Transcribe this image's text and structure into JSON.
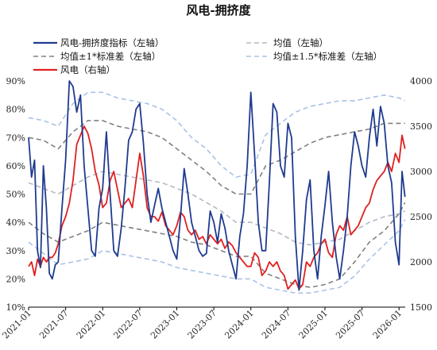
{
  "chart_data": {
    "type": "line",
    "title": "风电-拥挤度",
    "y_left": {
      "ticks": [
        "10%",
        "20%",
        "30%",
        "40%",
        "50%",
        "60%",
        "70%",
        "80%",
        "90%"
      ],
      "range": [
        0.1,
        0.9
      ]
    },
    "y_right": {
      "ticks": [
        "1500",
        "2000",
        "2500",
        "3000",
        "3500",
        "4000"
      ],
      "range": [
        1500,
        4000
      ]
    },
    "x_ticks": [
      "2021-01",
      "2021-07",
      "2022-01",
      "2022-07",
      "2023-01",
      "2023-07",
      "2024-01",
      "2024-07",
      "2025-01",
      "2025-07",
      "2026-01"
    ],
    "x_range": [
      "2021-01",
      "2026-02"
    ],
    "legend": [
      {
        "label": "风电-拥挤度指标（左轴）",
        "color": "#1f3b8f",
        "style": "solid"
      },
      {
        "label": "均值（左轴）",
        "color": "#b4b8c4",
        "style": "dashed"
      },
      {
        "label": "均值±1*标准差（左轴）",
        "color": "#808080",
        "style": "dashed"
      },
      {
        "label": "均值±1.5*标准差（左轴）",
        "color": "#a9c2e6",
        "style": "dashed"
      },
      {
        "label": "风电（右轴）",
        "color": "#e02020",
        "style": "solid"
      }
    ],
    "series": [
      {
        "name": "风电-拥挤度指标（左轴）",
        "axis": "left",
        "color": "#1f3b8f",
        "x": [
          2021.0,
          2021.04,
          2021.08,
          2021.12,
          2021.16,
          2021.2,
          2021.24,
          2021.28,
          2021.32,
          2021.36,
          2021.4,
          2021.45,
          2021.5,
          2021.55,
          2021.6,
          2021.65,
          2021.7,
          2021.75,
          2021.8,
          2021.85,
          2021.9,
          2021.95,
          2022.0,
          2022.05,
          2022.1,
          2022.15,
          2022.2,
          2022.25,
          2022.3,
          2022.35,
          2022.4,
          2022.45,
          2022.5,
          2022.55,
          2022.6,
          2022.65,
          2022.7,
          2022.75,
          2022.8,
          2022.85,
          2022.9,
          2022.95,
          2023.0,
          2023.05,
          2023.1,
          2023.15,
          2023.2,
          2023.25,
          2023.3,
          2023.35,
          2023.4,
          2023.45,
          2023.5,
          2023.55,
          2023.6,
          2023.65,
          2023.7,
          2023.75,
          2023.8,
          2023.85,
          2023.9,
          2023.95,
          2024.0,
          2024.05,
          2024.1,
          2024.15,
          2024.2,
          2024.25,
          2024.3,
          2024.35,
          2024.4,
          2024.45,
          2024.5,
          2024.55,
          2024.6,
          2024.65,
          2024.7,
          2024.75,
          2024.8,
          2024.85,
          2024.9,
          2024.95,
          2025.0,
          2025.05,
          2025.1,
          2025.15,
          2025.2,
          2025.25,
          2025.3,
          2025.35,
          2025.4,
          2025.45,
          2025.5,
          2025.55,
          2025.6,
          2025.65,
          2025.7,
          2025.75,
          2025.8,
          2025.85,
          2025.9,
          2025.95,
          2026.0,
          2026.04,
          2026.08
        ],
        "y": [
          0.7,
          0.56,
          0.62,
          0.3,
          0.24,
          0.6,
          0.45,
          0.22,
          0.2,
          0.25,
          0.26,
          0.45,
          0.62,
          0.9,
          0.88,
          0.79,
          0.85,
          0.6,
          0.45,
          0.3,
          0.28,
          0.45,
          0.52,
          0.72,
          0.5,
          0.3,
          0.28,
          0.38,
          0.52,
          0.69,
          0.72,
          0.8,
          0.82,
          0.68,
          0.5,
          0.4,
          0.46,
          0.52,
          0.45,
          0.4,
          0.35,
          0.3,
          0.27,
          0.42,
          0.59,
          0.5,
          0.4,
          0.35,
          0.3,
          0.28,
          0.29,
          0.44,
          0.4,
          0.33,
          0.43,
          0.38,
          0.3,
          0.25,
          0.2,
          0.35,
          0.43,
          0.6,
          0.86,
          0.64,
          0.4,
          0.3,
          0.3,
          0.54,
          0.82,
          0.79,
          0.6,
          0.56,
          0.75,
          0.7,
          0.35,
          0.16,
          0.3,
          0.48,
          0.55,
          0.3,
          0.2,
          0.35,
          0.46,
          0.58,
          0.4,
          0.28,
          0.2,
          0.3,
          0.42,
          0.6,
          0.72,
          0.67,
          0.6,
          0.56,
          0.7,
          0.8,
          0.67,
          0.81,
          0.75,
          0.6,
          0.54,
          0.33,
          0.25,
          0.58,
          0.49
        ]
      },
      {
        "name": "风电（右轴）",
        "axis": "right",
        "color": "#e02020",
        "x": [
          2021.0,
          2021.04,
          2021.08,
          2021.12,
          2021.16,
          2021.2,
          2021.24,
          2021.28,
          2021.32,
          2021.36,
          2021.4,
          2021.45,
          2021.5,
          2021.55,
          2021.6,
          2021.65,
          2021.7,
          2021.75,
          2021.8,
          2021.85,
          2021.9,
          2021.95,
          2022.0,
          2022.05,
          2022.1,
          2022.15,
          2022.2,
          2022.25,
          2022.3,
          2022.35,
          2022.4,
          2022.45,
          2022.5,
          2022.55,
          2022.6,
          2022.65,
          2022.7,
          2022.75,
          2022.8,
          2022.85,
          2022.9,
          2022.95,
          2023.0,
          2023.05,
          2023.1,
          2023.15,
          2023.2,
          2023.25,
          2023.3,
          2023.35,
          2023.4,
          2023.45,
          2023.5,
          2023.55,
          2023.6,
          2023.65,
          2023.7,
          2023.75,
          2023.8,
          2023.85,
          2023.9,
          2023.95,
          2024.0,
          2024.05,
          2024.1,
          2024.15,
          2024.2,
          2024.25,
          2024.3,
          2024.35,
          2024.4,
          2024.45,
          2024.5,
          2024.55,
          2024.6,
          2024.65,
          2024.7,
          2024.75,
          2024.8,
          2024.85,
          2024.9,
          2024.95,
          2025.0,
          2025.05,
          2025.1,
          2025.15,
          2025.2,
          2025.25,
          2025.3,
          2025.35,
          2025.4,
          2025.45,
          2025.5,
          2025.55,
          2025.6,
          2025.65,
          2025.7,
          2025.75,
          2025.8,
          2025.85,
          2025.9,
          2025.95,
          2026.0,
          2026.04,
          2026.08
        ],
        "y": [
          1950,
          2000,
          1850,
          2030,
          1950,
          2050,
          2000,
          2050,
          2050,
          2100,
          2200,
          2400,
          2500,
          2650,
          2900,
          3300,
          3400,
          3500,
          3420,
          3250,
          3000,
          2850,
          2600,
          2650,
          2900,
          3000,
          2800,
          2600,
          2650,
          2700,
          2600,
          2900,
          3200,
          2950,
          2600,
          2500,
          2500,
          2450,
          2550,
          2400,
          2350,
          2300,
          2400,
          2550,
          2500,
          2350,
          2300,
          2350,
          2250,
          2280,
          2200,
          2300,
          2250,
          2200,
          2250,
          2150,
          2220,
          2180,
          2100,
          2050,
          2000,
          1950,
          1950,
          2100,
          2050,
          1850,
          1900,
          2000,
          1950,
          2000,
          1900,
          1850,
          1700,
          1750,
          1800,
          1700,
          1750,
          2000,
          1950,
          2050,
          2100,
          2200,
          2250,
          2100,
          2050,
          2300,
          2400,
          2350,
          2500,
          2300,
          2350,
          2400,
          2500,
          2600,
          2650,
          2800,
          2900,
          2950,
          3000,
          3100,
          3000,
          3200,
          3100,
          3400,
          3250
        ]
      },
      {
        "name": "均值（左轴）",
        "axis": "left",
        "color": "#b4b8c4",
        "x": [
          2021.0,
          2021.2,
          2021.4,
          2021.6,
          2021.8,
          2022.0,
          2022.2,
          2022.4,
          2022.6,
          2022.8,
          2023.0,
          2023.2,
          2023.4,
          2023.6,
          2023.8,
          2024.0,
          2024.2,
          2024.4,
          2024.6,
          2024.8,
          2025.0,
          2025.2,
          2025.4,
          2025.6,
          2025.8,
          2026.0,
          2026.08
        ],
        "y": [
          0.54,
          0.52,
          0.5,
          0.53,
          0.56,
          0.58,
          0.57,
          0.56,
          0.55,
          0.54,
          0.52,
          0.5,
          0.47,
          0.44,
          0.4,
          0.4,
          0.38,
          0.36,
          0.33,
          0.32,
          0.33,
          0.34,
          0.37,
          0.4,
          0.42,
          0.43,
          0.44
        ]
      },
      {
        "name": "均值+1*标准差（左轴）",
        "axis": "left",
        "color": "#808080",
        "x": [
          2021.0,
          2021.2,
          2021.4,
          2021.6,
          2021.8,
          2022.0,
          2022.2,
          2022.4,
          2022.6,
          2022.8,
          2023.0,
          2023.2,
          2023.4,
          2023.6,
          2023.8,
          2024.0,
          2024.2,
          2024.4,
          2024.6,
          2024.8,
          2025.0,
          2025.2,
          2025.4,
          2025.6,
          2025.8,
          2026.0,
          2026.08
        ],
        "y": [
          0.7,
          0.69,
          0.66,
          0.72,
          0.76,
          0.76,
          0.74,
          0.73,
          0.72,
          0.7,
          0.66,
          0.62,
          0.58,
          0.53,
          0.5,
          0.5,
          0.6,
          0.62,
          0.65,
          0.68,
          0.7,
          0.71,
          0.72,
          0.73,
          0.75,
          0.75,
          0.75
        ]
      },
      {
        "name": "均值-1*标准差（左轴）",
        "axis": "left",
        "color": "#808080",
        "x": [
          2021.0,
          2021.2,
          2021.4,
          2021.6,
          2021.8,
          2022.0,
          2022.2,
          2022.4,
          2022.6,
          2022.8,
          2023.0,
          2023.2,
          2023.4,
          2023.6,
          2023.8,
          2024.0,
          2024.2,
          2024.4,
          2024.6,
          2024.8,
          2025.0,
          2025.2,
          2025.4,
          2025.6,
          2025.8,
          2026.0,
          2026.08
        ],
        "y": [
          0.4,
          0.36,
          0.33,
          0.35,
          0.37,
          0.4,
          0.39,
          0.38,
          0.37,
          0.36,
          0.35,
          0.33,
          0.32,
          0.3,
          0.28,
          0.28,
          0.22,
          0.2,
          0.18,
          0.17,
          0.18,
          0.2,
          0.26,
          0.33,
          0.37,
          0.43,
          0.47
        ]
      },
      {
        "name": "均值+1.5*标准差（左轴）",
        "axis": "left",
        "color": "#a9c2e6",
        "x": [
          2021.0,
          2021.2,
          2021.4,
          2021.6,
          2021.8,
          2022.0,
          2022.2,
          2022.4,
          2022.6,
          2022.8,
          2023.0,
          2023.2,
          2023.4,
          2023.6,
          2023.8,
          2024.0,
          2024.2,
          2024.4,
          2024.6,
          2024.8,
          2025.0,
          2025.2,
          2025.4,
          2025.6,
          2025.8,
          2026.0,
          2026.08
        ],
        "y": [
          0.77,
          0.76,
          0.74,
          0.82,
          0.86,
          0.86,
          0.84,
          0.83,
          0.82,
          0.8,
          0.76,
          0.7,
          0.66,
          0.6,
          0.56,
          0.57,
          0.71,
          0.75,
          0.79,
          0.81,
          0.82,
          0.83,
          0.83,
          0.84,
          0.85,
          0.84,
          0.83
        ]
      },
      {
        "name": "均值-1.5*标准差（左轴）",
        "axis": "left",
        "color": "#a9c2e6",
        "x": [
          2021.0,
          2021.2,
          2021.4,
          2021.6,
          2021.8,
          2022.0,
          2022.2,
          2022.4,
          2022.6,
          2022.8,
          2023.0,
          2023.2,
          2023.4,
          2023.6,
          2023.8,
          2024.0,
          2024.2,
          2024.4,
          2024.6,
          2024.8,
          2025.0,
          2025.2,
          2025.4,
          2025.6,
          2025.8,
          2026.0,
          2026.08
        ],
        "y": [
          0.33,
          0.29,
          0.25,
          0.26,
          0.27,
          0.3,
          0.29,
          0.28,
          0.27,
          0.26,
          0.24,
          0.23,
          0.22,
          0.21,
          0.2,
          0.2,
          0.17,
          0.16,
          0.15,
          0.15,
          0.16,
          0.17,
          0.21,
          0.27,
          0.32,
          0.37,
          0.41
        ]
      }
    ]
  }
}
